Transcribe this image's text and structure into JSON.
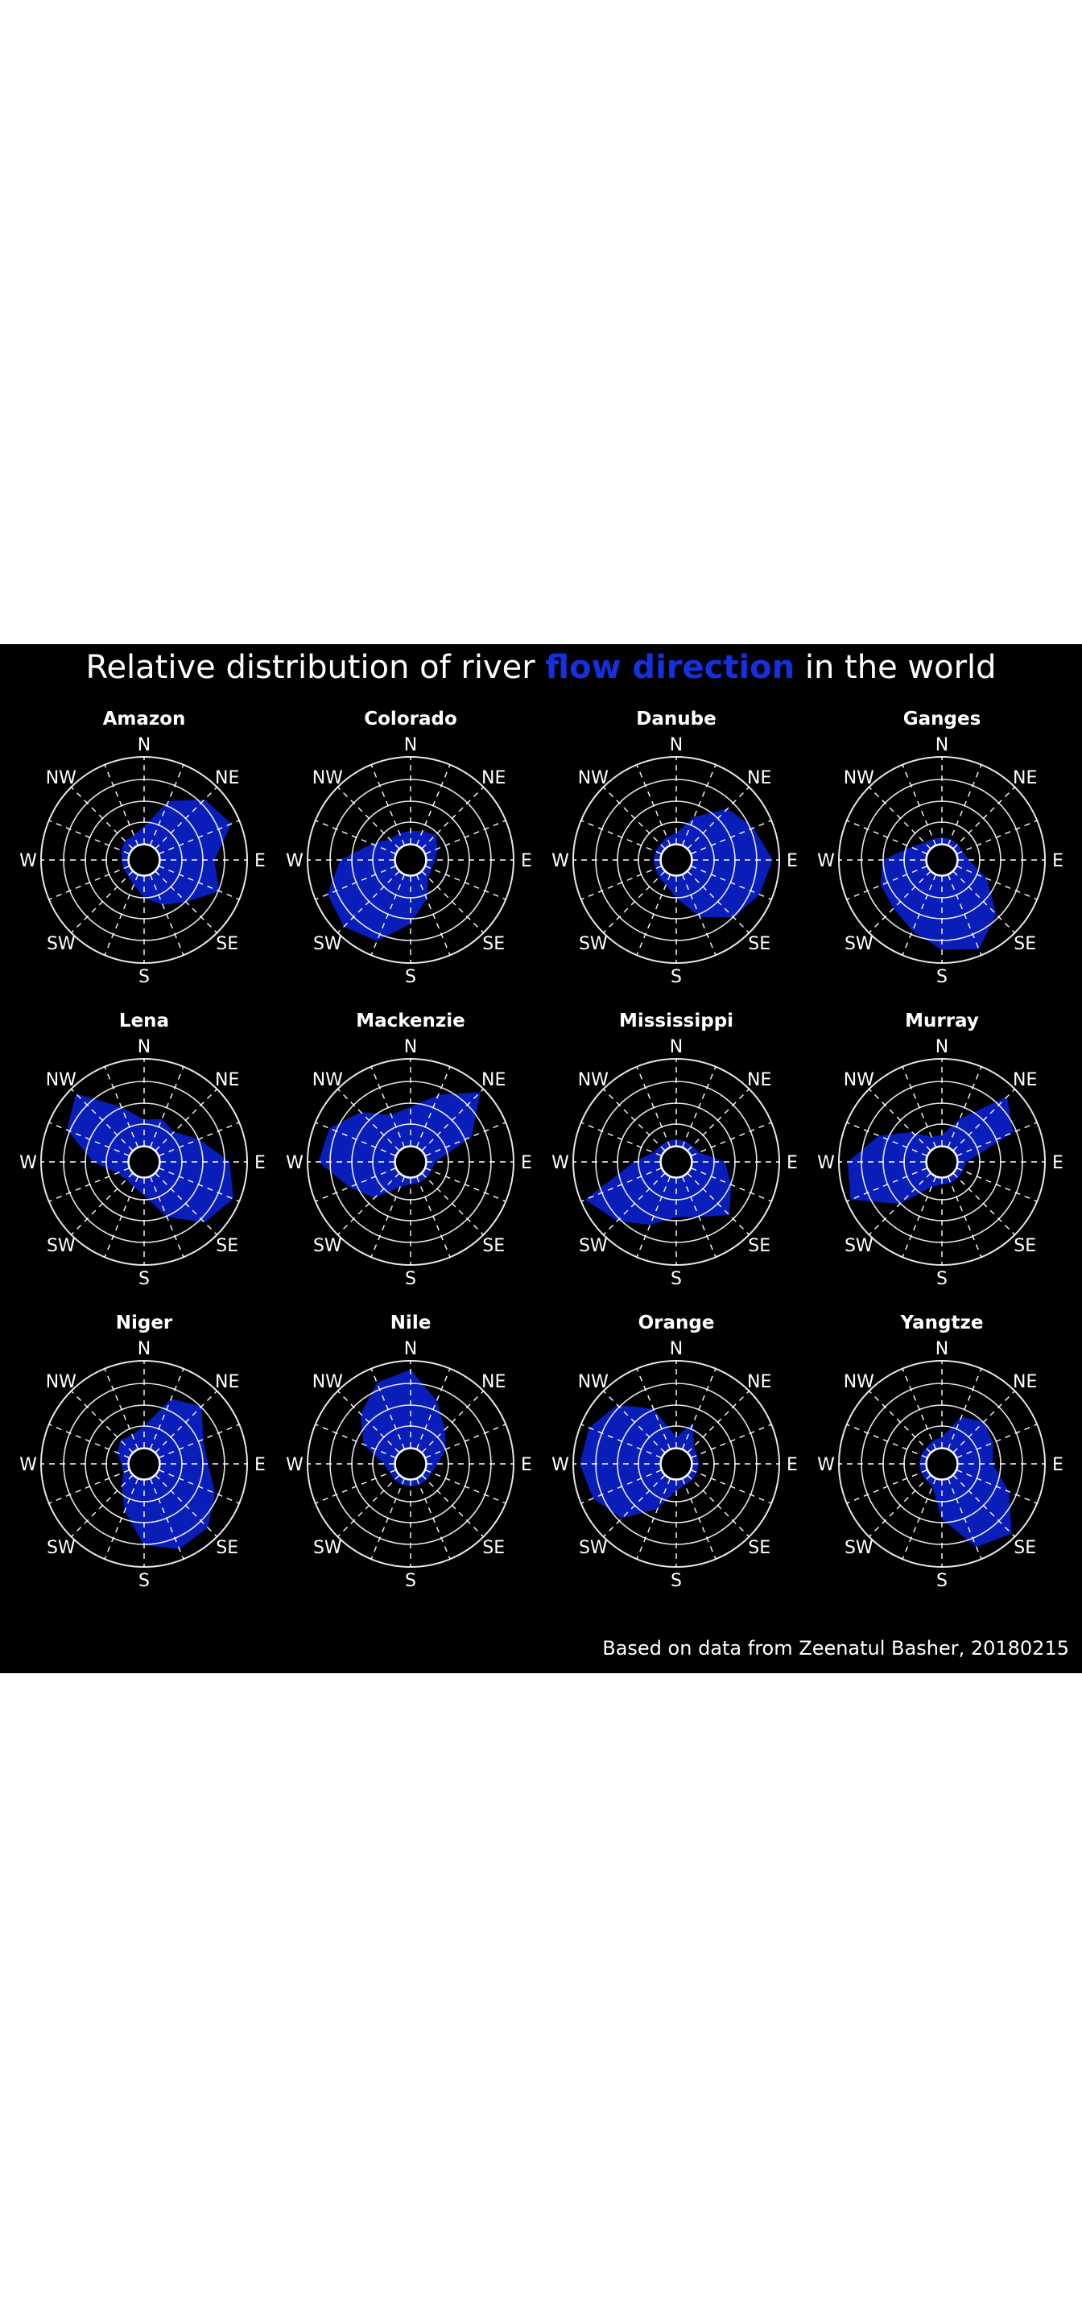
{
  "title": {
    "before": "Relative distribution of river ",
    "highlight": "flow direction",
    "after": " in the world"
  },
  "caption": "Based on data from Zeenatul Basher, 20180215",
  "colors": {
    "background": "#000000",
    "accent": "#1530e0",
    "fill": "#0a22d8",
    "text": "#ffffff"
  },
  "chart_data": {
    "type": "radar",
    "directions": [
      "N",
      "NE",
      "E",
      "SE",
      "S",
      "SW",
      "W",
      "NW"
    ],
    "rlim": [
      0,
      4
    ],
    "grid": true,
    "rivers": [
      {
        "name": "Amazon",
        "values": [
          0.8,
          2.2,
          3.2,
          3.6,
          2.5,
          3.0,
          2.0,
          1.5,
          1.0,
          0.5,
          0.3,
          0.3,
          0.3,
          0.4,
          0.5,
          0.5
        ]
      },
      {
        "name": "Colorado",
        "values": [
          0.6,
          0.7,
          0.9,
          0.6,
          0.4,
          0.3,
          0.4,
          1.2,
          2.2,
          3.3,
          3.6,
          3.4,
          2.5,
          1.2,
          0.6,
          0.6
        ]
      },
      {
        "name": "Danube",
        "values": [
          0.5,
          1.4,
          2.6,
          3.1,
          3.7,
          3.4,
          3.0,
          2.1,
          1.0,
          0.5,
          0.4,
          0.3,
          0.3,
          0.3,
          0.3,
          0.4
        ]
      },
      {
        "name": "Ganges",
        "values": [
          0.3,
          0.3,
          0.3,
          0.3,
          0.5,
          1.5,
          2.8,
          3.7,
          3.4,
          2.8,
          2.4,
          2.3,
          2.0,
          0.8,
          0.4,
          0.3
        ]
      },
      {
        "name": "Lena",
        "values": [
          1.2,
          1.4,
          1.2,
          2.0,
          3.2,
          3.7,
          3.2,
          2.0,
          0.8,
          0.5,
          0.4,
          0.6,
          1.6,
          3.1,
          3.7,
          2.0
        ]
      },
      {
        "name": "Mackenzie",
        "values": [
          1.8,
          2.6,
          3.8,
          2.3,
          0.4,
          0.3,
          0.3,
          0.3,
          0.3,
          0.5,
          1.6,
          2.3,
          3.5,
          3.3,
          2.5,
          1.6
        ]
      },
      {
        "name": "Mississippi",
        "values": [
          0.3,
          0.3,
          0.3,
          0.4,
          1.5,
          2.0,
          2.7,
          2.0,
          1.8,
          2.4,
          3.1,
          3.8,
          1.2,
          0.4,
          0.3,
          0.3
        ]
      },
      {
        "name": "Murray",
        "values": [
          0.5,
          1.4,
          3.5,
          2.8,
          0.4,
          0.3,
          0.3,
          0.3,
          0.3,
          0.5,
          2.0,
          3.8,
          3.6,
          2.4,
          1.2,
          0.5
        ]
      },
      {
        "name": "Niger",
        "values": [
          1.0,
          2.5,
          3.0,
          2.2,
          2.2,
          2.8,
          3.4,
          3.5,
          3.0,
          1.6,
          0.7,
          0.3,
          0.3,
          0.6,
          0.8,
          0.7
        ]
      },
      {
        "name": "Nile",
        "values": [
          3.6,
          2.4,
          1.5,
          1.0,
          0.5,
          0.3,
          0.3,
          0.3,
          0.3,
          0.3,
          0.3,
          0.3,
          0.5,
          1.6,
          2.5,
          3.3
        ]
      },
      {
        "name": "Orange",
        "values": [
          0.5,
          1.3,
          0.4,
          0.3,
          0.3,
          0.3,
          0.3,
          0.3,
          0.5,
          1.5,
          2.8,
          3.4,
          3.7,
          3.6,
          3.1,
          2.0
        ]
      },
      {
        "name": "Yangtze",
        "values": [
          0.5,
          1.6,
          2.0,
          1.8,
          1.6,
          2.6,
          3.8,
          3.4,
          1.8,
          0.4,
          0.3,
          0.3,
          0.3,
          0.3,
          0.3,
          0.4
        ]
      }
    ]
  }
}
